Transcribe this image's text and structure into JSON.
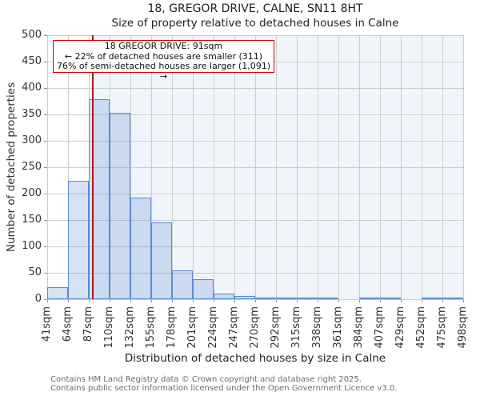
{
  "figure": {
    "title": "18, GREGOR DRIVE, CALNE, SN11 8HT",
    "subtitle": "Size of property relative to detached houses in Calne"
  },
  "annotation": {
    "line1": "18 GREGOR DRIVE: 91sqm",
    "line2": "← 22% of detached houses are smaller (311)",
    "line3": "76% of semi-detached houses are larger (1,091) →"
  },
  "footer": {
    "line1": "Contains HM Land Registry data © Crown copyright and database right 2025.",
    "line2": "Contains public sector information licensed under the Open Government Licence v3.0."
  },
  "chart_data": {
    "type": "bar",
    "title": "18, GREGOR DRIVE, CALNE, SN11 8HT",
    "subtitle": "Size of property relative to detached houses in Calne",
    "xlabel": "Distribution of detached houses by size in Calne",
    "ylabel": "Number of detached properties",
    "categories": [
      "41sqm",
      "64sqm",
      "87sqm",
      "110sqm",
      "132sqm",
      "155sqm",
      "178sqm",
      "201sqm",
      "224sqm",
      "247sqm",
      "270sqm",
      "292sqm",
      "315sqm",
      "338sqm",
      "361sqm",
      "384sqm",
      "407sqm",
      "429sqm",
      "452sqm",
      "475sqm",
      "498sqm"
    ],
    "bin_edges_sqm": [
      41,
      64,
      87,
      110,
      132,
      155,
      178,
      201,
      224,
      247,
      270,
      292,
      315,
      338,
      361,
      384,
      407,
      429,
      452,
      475,
      498
    ],
    "values": [
      23,
      224,
      379,
      353,
      192,
      145,
      54,
      38,
      10,
      6,
      3,
      2,
      1,
      1,
      0,
      1,
      1,
      0,
      1,
      1
    ],
    "yticks": [
      0,
      50,
      100,
      150,
      200,
      250,
      300,
      350,
      400,
      450,
      500
    ],
    "ylim": [
      0,
      500
    ],
    "grid": true,
    "legend": "none",
    "marker_value_sqm": 91,
    "shaded_region": "right-of-marker",
    "colors": {
      "bar_fill": "rgba(91,139,208,0.25)",
      "bar_edge": "#5b8bd0",
      "marker_line": "#b01a1a",
      "annotation_border": "#cc0000",
      "shade": "#f0f4fb",
      "grid": "#cdcdcd"
    }
  }
}
